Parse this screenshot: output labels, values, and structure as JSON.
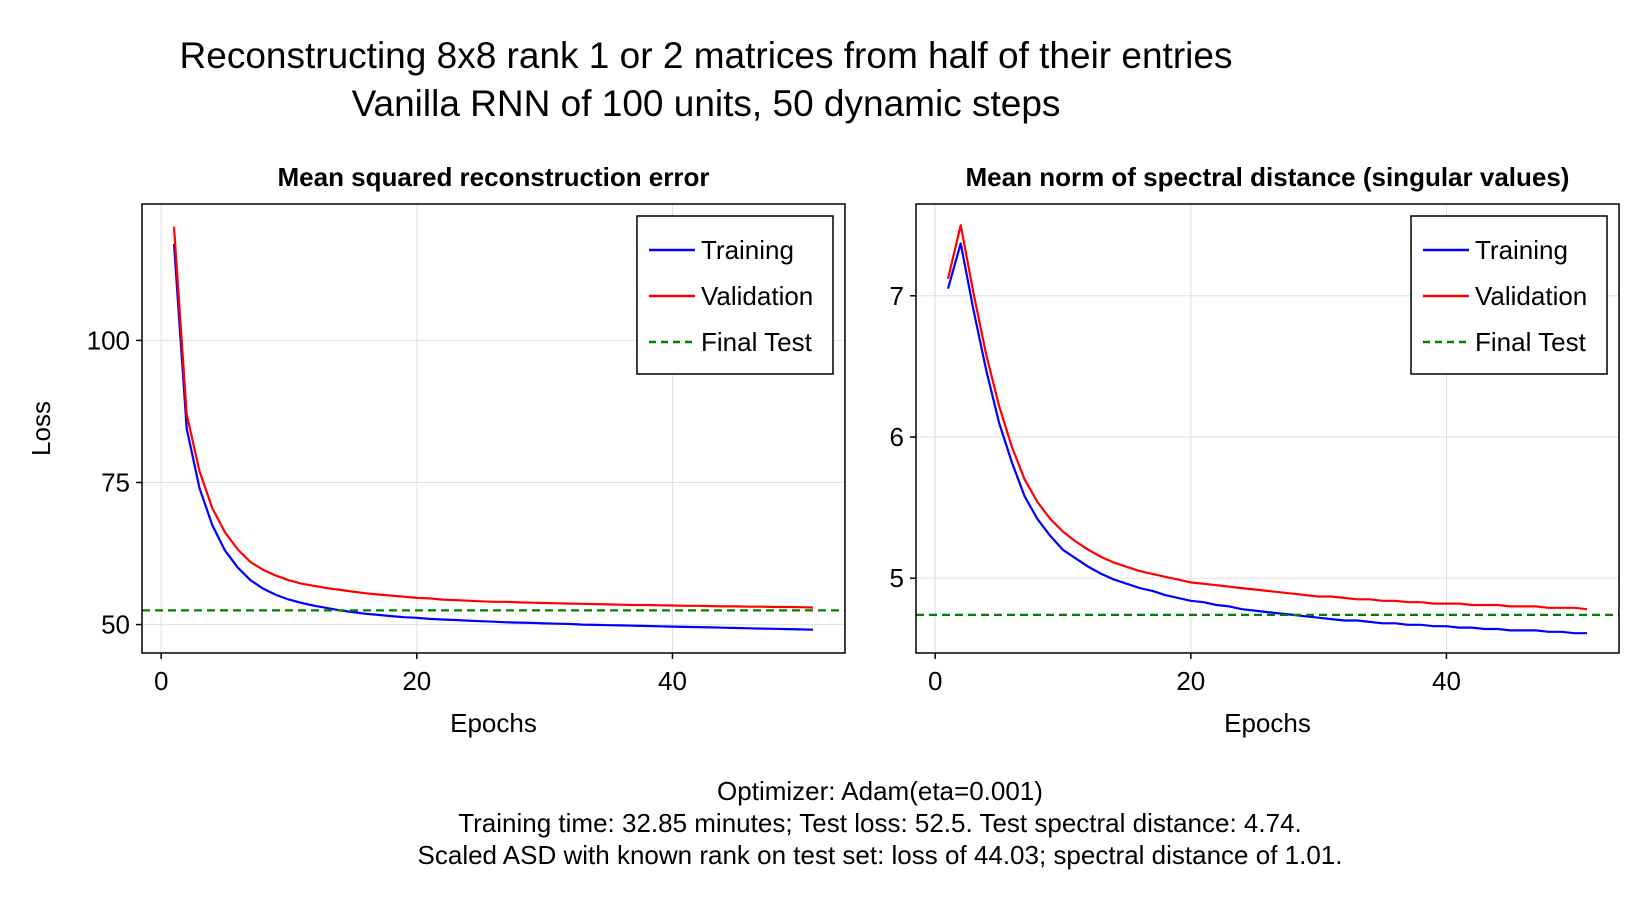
{
  "figure": {
    "title_line1": "Reconstructing 8x8 rank 1 or 2 matrices from half of their entries",
    "title_line2": "Vanilla RNN of 100 units, 50 dynamic steps",
    "footer_line1": "Optimizer: Adam(eta=0.001)",
    "footer_line2": "Training time: 32.85 minutes; Test loss: 52.5. Test spectral distance: 4.74.",
    "footer_line3": "Scaled ASD with known rank on test set: loss of 44.03; spectral distance of 1.01."
  },
  "colors": {
    "training": "#0000ff",
    "validation": "#ff0000",
    "final_test": "#008000",
    "grid": "#e0e0e0"
  },
  "chart_data": [
    {
      "type": "line",
      "title": "Mean squared reconstruction error",
      "xlabel": "Epochs",
      "ylabel": "Loss",
      "xlim": [
        -1.5,
        53.5
      ],
      "ylim": [
        45,
        124
      ],
      "xticks": [
        0,
        20,
        40
      ],
      "yticks": [
        50,
        75,
        100
      ],
      "grid": true,
      "legend": "top-right",
      "series": [
        {
          "name": "Training",
          "style": "solid",
          "x": [
            1,
            2,
            3,
            4,
            5,
            6,
            7,
            8,
            9,
            10,
            11,
            12,
            13,
            14,
            15,
            16,
            17,
            18,
            19,
            20,
            21,
            22,
            23,
            24,
            25,
            26,
            27,
            28,
            29,
            30,
            31,
            32,
            33,
            34,
            35,
            36,
            37,
            38,
            39,
            40,
            41,
            42,
            43,
            44,
            45,
            46,
            47,
            48,
            49,
            50,
            51
          ],
          "y": [
            117.0,
            84.5,
            74.0,
            67.5,
            63.0,
            60.0,
            57.8,
            56.3,
            55.2,
            54.4,
            53.8,
            53.3,
            52.9,
            52.5,
            52.2,
            51.9,
            51.7,
            51.5,
            51.3,
            51.2,
            51.0,
            50.9,
            50.8,
            50.7,
            50.6,
            50.5,
            50.4,
            50.35,
            50.3,
            50.2,
            50.15,
            50.1,
            50.0,
            49.95,
            49.9,
            49.85,
            49.8,
            49.75,
            49.7,
            49.65,
            49.6,
            49.55,
            49.5,
            49.45,
            49.4,
            49.35,
            49.3,
            49.25,
            49.2,
            49.15,
            49.1
          ]
        },
        {
          "name": "Validation",
          "style": "solid",
          "x": [
            1,
            2,
            3,
            4,
            5,
            6,
            7,
            8,
            9,
            10,
            11,
            12,
            13,
            14,
            15,
            16,
            17,
            18,
            19,
            20,
            21,
            22,
            23,
            24,
            25,
            26,
            27,
            28,
            29,
            30,
            31,
            32,
            33,
            34,
            35,
            36,
            37,
            38,
            39,
            40,
            41,
            42,
            43,
            44,
            45,
            46,
            47,
            48,
            49,
            50,
            51
          ],
          "y": [
            120.0,
            87.0,
            77.0,
            70.5,
            66.2,
            63.2,
            61.0,
            59.6,
            58.6,
            57.8,
            57.2,
            56.8,
            56.4,
            56.1,
            55.8,
            55.5,
            55.3,
            55.1,
            54.9,
            54.7,
            54.6,
            54.4,
            54.3,
            54.2,
            54.1,
            54.0,
            54.0,
            53.9,
            53.85,
            53.8,
            53.75,
            53.7,
            53.65,
            53.6,
            53.55,
            53.5,
            53.45,
            53.45,
            53.4,
            53.35,
            53.3,
            53.3,
            53.25,
            53.2,
            53.2,
            53.15,
            53.15,
            53.1,
            53.1,
            53.05,
            53.0
          ]
        },
        {
          "name": "Final Test",
          "style": "dashed",
          "hline": 52.5
        }
      ]
    },
    {
      "type": "line",
      "title": "Mean norm of spectral distance (singular values)",
      "xlabel": "Epochs",
      "ylabel": "",
      "xlim": [
        -1.5,
        53.5
      ],
      "ylim": [
        4.47,
        7.65
      ],
      "xticks": [
        0,
        20,
        40
      ],
      "yticks": [
        5,
        6,
        7
      ],
      "grid": true,
      "legend": "top-right",
      "series": [
        {
          "name": "Training",
          "style": "solid",
          "x": [
            1,
            2,
            3,
            4,
            5,
            6,
            7,
            8,
            9,
            10,
            11,
            12,
            13,
            14,
            15,
            16,
            17,
            18,
            19,
            20,
            21,
            22,
            23,
            24,
            25,
            26,
            27,
            28,
            29,
            30,
            31,
            32,
            33,
            34,
            35,
            36,
            37,
            38,
            39,
            40,
            41,
            42,
            43,
            44,
            45,
            46,
            47,
            48,
            49,
            50,
            51
          ],
          "y": [
            7.05,
            7.37,
            6.9,
            6.47,
            6.1,
            5.82,
            5.58,
            5.42,
            5.3,
            5.2,
            5.14,
            5.08,
            5.03,
            4.99,
            4.96,
            4.93,
            4.91,
            4.88,
            4.86,
            4.84,
            4.83,
            4.81,
            4.8,
            4.78,
            4.77,
            4.76,
            4.75,
            4.74,
            4.73,
            4.72,
            4.71,
            4.7,
            4.7,
            4.69,
            4.68,
            4.68,
            4.67,
            4.67,
            4.66,
            4.66,
            4.65,
            4.65,
            4.64,
            4.64,
            4.63,
            4.63,
            4.63,
            4.62,
            4.62,
            4.61,
            4.61
          ]
        },
        {
          "name": "Validation",
          "style": "solid",
          "x": [
            1,
            2,
            3,
            4,
            5,
            6,
            7,
            8,
            9,
            10,
            11,
            12,
            13,
            14,
            15,
            16,
            17,
            18,
            19,
            20,
            21,
            22,
            23,
            24,
            25,
            26,
            27,
            28,
            29,
            30,
            31,
            32,
            33,
            34,
            35,
            36,
            37,
            38,
            39,
            40,
            41,
            42,
            43,
            44,
            45,
            46,
            47,
            48,
            49,
            50,
            51
          ],
          "y": [
            7.12,
            7.5,
            7.02,
            6.58,
            6.22,
            5.93,
            5.7,
            5.54,
            5.42,
            5.33,
            5.26,
            5.2,
            5.15,
            5.11,
            5.08,
            5.05,
            5.03,
            5.01,
            4.99,
            4.97,
            4.96,
            4.95,
            4.94,
            4.93,
            4.92,
            4.91,
            4.9,
            4.89,
            4.88,
            4.87,
            4.87,
            4.86,
            4.85,
            4.85,
            4.84,
            4.84,
            4.83,
            4.83,
            4.82,
            4.82,
            4.82,
            4.81,
            4.81,
            4.81,
            4.8,
            4.8,
            4.8,
            4.79,
            4.79,
            4.79,
            4.78
          ]
        },
        {
          "name": "Final Test",
          "style": "dashed",
          "hline": 4.74
        }
      ]
    }
  ]
}
